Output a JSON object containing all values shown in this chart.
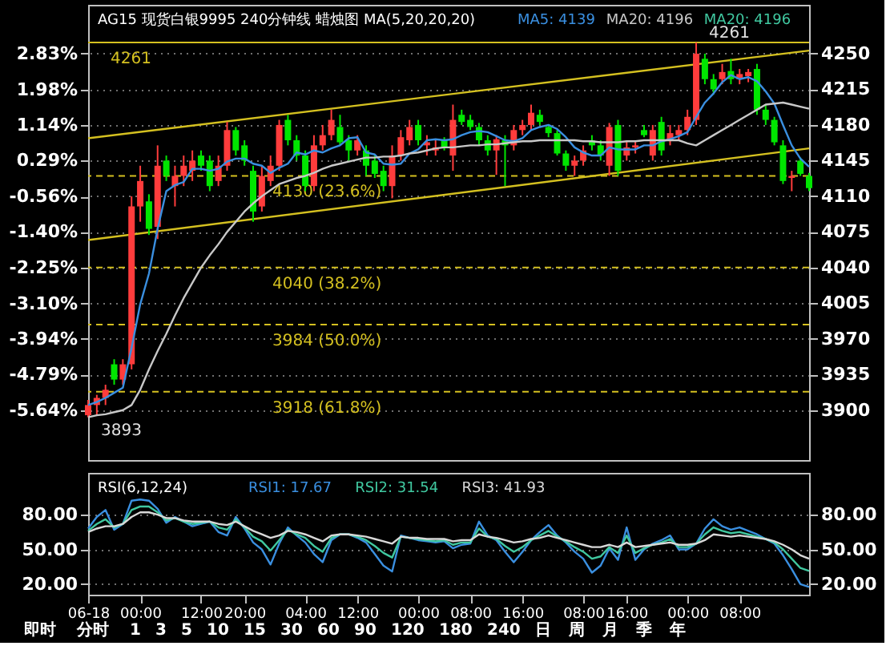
{
  "chart_data": [
    {
      "type": "candlestick",
      "title": "AG15 现货白银9995 240分钟线  蜡烛图 MA(5,20,20,20)",
      "ohlc": [
        [
          3895,
          3910,
          3893,
          3905
        ],
        [
          3905,
          3915,
          3895,
          3912
        ],
        [
          3912,
          3925,
          3905,
          3920
        ],
        [
          3945,
          3950,
          3925,
          3930
        ],
        [
          3930,
          3950,
          3925,
          3945
        ],
        [
          3945,
          4110,
          3940,
          4100
        ],
        [
          4100,
          4140,
          4085,
          4125
        ],
        [
          4105,
          4112,
          4072,
          4078
        ],
        [
          4080,
          4160,
          4068,
          4140
        ],
        [
          4145,
          4150,
          4125,
          4130
        ],
        [
          4120,
          4140,
          4100,
          4130
        ],
        [
          4130,
          4150,
          4120,
          4140
        ],
        [
          4135,
          4155,
          4125,
          4145
        ],
        [
          4150,
          4155,
          4135,
          4140
        ],
        [
          4145,
          4150,
          4115,
          4120
        ],
        [
          4125,
          4150,
          4120,
          4140
        ],
        [
          4140,
          4183,
          4135,
          4175
        ],
        [
          4175,
          4178,
          4150,
          4155
        ],
        [
          4160,
          4165,
          4140,
          4145
        ],
        [
          4135,
          4140,
          4085,
          4095
        ],
        [
          4100,
          4140,
          4095,
          4130
        ],
        [
          4125,
          4150,
          4120,
          4140
        ],
        [
          4140,
          4185,
          4135,
          4180
        ],
        [
          4185,
          4190,
          4160,
          4165
        ],
        [
          4165,
          4170,
          4145,
          4150
        ],
        [
          4150,
          4155,
          4115,
          4120
        ],
        [
          4120,
          4170,
          4115,
          4160
        ],
        [
          4160,
          4180,
          4155,
          4170
        ],
        [
          4170,
          4195,
          4165,
          4185
        ],
        [
          4178,
          4190,
          4160,
          4163
        ],
        [
          4165,
          4170,
          4145,
          4155
        ],
        [
          4155,
          4170,
          4150,
          4165
        ],
        [
          4155,
          4160,
          4130,
          4140
        ],
        [
          4145,
          4150,
          4128,
          4132
        ],
        [
          4135,
          4140,
          4115,
          4120
        ],
        [
          4120,
          4160,
          4108,
          4150
        ],
        [
          4150,
          4175,
          4145,
          4168
        ],
        [
          4165,
          4185,
          4160,
          4178
        ],
        [
          4180,
          4185,
          4160,
          4165
        ],
        [
          4160,
          4170,
          4150,
          4163
        ],
        [
          4155,
          4165,
          4150,
          4158
        ],
        [
          4165,
          4168,
          4155,
          4158
        ],
        [
          4150,
          4200,
          4135,
          4185
        ],
        [
          4190,
          4195,
          4180,
          4183
        ],
        [
          4185,
          4190,
          4175,
          4178
        ],
        [
          4178,
          4182,
          4160,
          4165
        ],
        [
          4165,
          4170,
          4150,
          4155
        ],
        [
          4155,
          4170,
          4131,
          4166
        ],
        [
          4165,
          4170,
          4120,
          4160
        ],
        [
          4160,
          4180,
          4155,
          4175
        ],
        [
          4175,
          4185,
          4170,
          4180
        ],
        [
          4180,
          4200,
          4175,
          4192
        ],
        [
          4190,
          4195,
          4180,
          4183
        ],
        [
          4178,
          4180,
          4168,
          4172
        ],
        [
          4172,
          4175,
          4150,
          4152
        ],
        [
          4152,
          4155,
          4135,
          4140
        ],
        [
          4140,
          4150,
          4130,
          4145
        ],
        [
          4145,
          4160,
          4140,
          4155
        ],
        [
          4165,
          4170,
          4155,
          4160
        ],
        [
          4160,
          4165,
          4145,
          4150
        ],
        [
          4140,
          4182,
          4130,
          4178
        ],
        [
          4180,
          4185,
          4130,
          4135
        ],
        [
          4150,
          4165,
          4145,
          4158
        ],
        [
          4158,
          4165,
          4152,
          4160
        ],
        [
          4175,
          4180,
          4168,
          4170
        ],
        [
          4150,
          4180,
          4145,
          4175
        ],
        [
          4183,
          4188,
          4150,
          4155
        ],
        [
          4165,
          4180,
          4160,
          4172
        ],
        [
          4170,
          4180,
          4165,
          4175
        ],
        [
          4175,
          4195,
          4170,
          4188
        ],
        [
          4185,
          4261,
          4180,
          4250
        ],
        [
          4245,
          4250,
          4220,
          4225
        ],
        [
          4225,
          4230,
          4210,
          4215
        ],
        [
          4225,
          4240,
          4220,
          4232
        ],
        [
          4233,
          4245,
          4220,
          4225
        ],
        [
          4225,
          4235,
          4220,
          4230
        ],
        [
          4228,
          4235,
          4222,
          4232
        ],
        [
          4235,
          4240,
          4190,
          4195
        ],
        [
          4195,
          4200,
          4180,
          4185
        ],
        [
          4185,
          4188,
          4160,
          4163
        ],
        [
          4160,
          4165,
          4122,
          4125
        ],
        [
          4128,
          4135,
          4115,
          4130
        ],
        [
          4145,
          4148,
          4130,
          4132
        ],
        [
          4130,
          4133,
          4115,
          4118
        ]
      ],
      "colors": [
        "#ff3c3c",
        "#ff3c3c",
        "#ff3c3c",
        "#00e600",
        "#ff3c3c",
        "#ff3c3c",
        "#ff3c3c",
        "#00e600",
        "#ff3c3c",
        "#00e600",
        "#ff3c3c",
        "#ff3c3c",
        "#ff3c3c",
        "#00e600",
        "#00e600",
        "#ff3c3c",
        "#ff3c3c",
        "#00e600",
        "#00e600",
        "#00e600",
        "#ff3c3c",
        "#ff3c3c",
        "#ff3c3c",
        "#00e600",
        "#00e600",
        "#00e600",
        "#ff3c3c",
        "#ff3c3c",
        "#ff3c3c",
        "#00e600",
        "#00e600",
        "#ff3c3c",
        "#00e600",
        "#00e600",
        "#00e600",
        "#ff3c3c",
        "#ff3c3c",
        "#ff3c3c",
        "#00e600",
        "#ff3c3c",
        "#ff3c3c",
        "#00e600",
        "#ff3c3c",
        "#00e600",
        "#00e600",
        "#00e600",
        "#00e600",
        "#ff3c3c",
        "#00e600",
        "#ff3c3c",
        "#ff3c3c",
        "#ff3c3c",
        "#00e600",
        "#00e600",
        "#00e600",
        "#00e600",
        "#ff3c3c",
        "#ff3c3c",
        "#00e600",
        "#00e600",
        "#ff3c3c",
        "#00e600",
        "#ff3c3c",
        "#ff3c3c",
        "#00e600",
        "#ff3c3c",
        "#00e600",
        "#ff3c3c",
        "#ff3c3c",
        "#ff3c3c",
        "#ff3c3c",
        "#00e600",
        "#00e600",
        "#ff3c3c",
        "#00e600",
        "#ff3c3c",
        "#ff3c3c",
        "#00e600",
        "#00e600",
        "#00e600",
        "#00e600",
        "#ff3c3c",
        "#00e600",
        "#00e600"
      ],
      "series": [
        {
          "type": "line",
          "color": "#d4c020",
          "values": [
            4167,
            null,
            null,
            null,
            null,
            null,
            null,
            null,
            null,
            null,
            null,
            null,
            null,
            null,
            null,
            null,
            null,
            null,
            null,
            null,
            null,
            null,
            null,
            null,
            null,
            null,
            null,
            null,
            null,
            null,
            null,
            null,
            null,
            null,
            null,
            null,
            null,
            null,
            null,
            null,
            null,
            null,
            null,
            null,
            null,
            null,
            null,
            null,
            null,
            null,
            null,
            null,
            null,
            null,
            null,
            null,
            null,
            null,
            null,
            null,
            null,
            null,
            null,
            null,
            null,
            null,
            null,
            null,
            null,
            null,
            null,
            null,
            null,
            null,
            null,
            null,
            null,
            null,
            null,
            null,
            null,
            null,
            null,
            4253
          ]
        },
        {
          "type": "line",
          "color": "#d4c020",
          "values": [
            4067,
            null,
            null,
            null,
            null,
            null,
            null,
            null,
            null,
            null,
            null,
            null,
            null,
            null,
            null,
            null,
            null,
            null,
            null,
            null,
            null,
            null,
            null,
            null,
            null,
            null,
            null,
            null,
            null,
            null,
            null,
            null,
            null,
            null,
            null,
            null,
            null,
            null,
            null,
            null,
            null,
            null,
            null,
            null,
            null,
            null,
            null,
            null,
            null,
            null,
            null,
            null,
            null,
            null,
            null,
            null,
            null,
            null,
            null,
            null,
            null,
            null,
            null,
            null,
            null,
            null,
            null,
            null,
            null,
            null,
            null,
            null,
            null,
            null,
            null,
            null,
            null,
            null,
            null,
            null,
            null,
            null,
            null,
            4157
          ]
        },
        {
          "type": "line",
          "name": "MA5: 4139",
          "color": "#3a8fe0",
          "values": [
            3905,
            3908,
            3912,
            3917,
            3922,
            3961,
            4004,
            4034,
            4078,
            4115,
            4121,
            4124,
            4137,
            4137,
            4135,
            4137,
            4144,
            4147,
            4147,
            4142,
            4140,
            4133,
            4138,
            4142,
            4153,
            4151,
            4155,
            4153,
            4157,
            4160,
            4167,
            4168,
            4153,
            4151,
            4142,
            4141,
            4142,
            4152,
            4156,
            4165,
            4166,
            4165,
            4166,
            4170,
            4173,
            4174,
            4173,
            4169,
            4165,
            4164,
            4167,
            4175,
            4178,
            4180,
            4176,
            4168,
            4158,
            4153,
            4150,
            4150,
            4158,
            4156,
            4156,
            4156,
            4160,
            4160,
            4164,
            4166,
            4169,
            4173,
            4188,
            4202,
            4211,
            4222,
            4229,
            4225,
            4227,
            4223,
            4213,
            4201,
            4180,
            4160,
            4147,
            4139
          ]
        },
        {
          "type": "line",
          "name": "MA20: 4196",
          "color": "#c8c8c8",
          "values": [
            3893,
            3895,
            3896,
            3898,
            3900,
            3905,
            3920,
            3940,
            3958,
            3975,
            3993,
            4010,
            4025,
            4040,
            4052,
            4063,
            4075,
            4085,
            4095,
            4103,
            4110,
            4116,
            4122,
            4125,
            4128,
            4130,
            4133,
            4137,
            4140,
            4142,
            4144,
            4146,
            4148,
            4148,
            4149,
            4149,
            4150,
            4152,
            4153,
            4155,
            4157,
            4158,
            4158,
            4159,
            4160,
            4160,
            4161,
            4161,
            4162,
            4163,
            4164,
            4164,
            4165,
            4165,
            4165,
            4165,
            4165,
            4164,
            4164,
            4163,
            4163,
            4163,
            4164,
            4164,
            4165,
            4165,
            4165,
            4165,
            4165,
            4162,
            4160,
            4165,
            4170,
            4175,
            4180,
            4185,
            4190,
            4195,
            4200,
            4201,
            4202,
            4200,
            4198,
            4196
          ]
        }
      ],
      "ylim": [
        3851,
        4298
      ],
      "yticks": [
        3900,
        3935,
        3970,
        4005,
        4040,
        4075,
        4110,
        4145,
        4180,
        4215,
        4250
      ],
      "y2lim": [
        -6.82,
        3.99
      ],
      "y2ticks": [
        {
          "value": -5.64,
          "label": "-5.64%"
        },
        {
          "value": -4.79,
          "label": "-4.79%"
        },
        {
          "value": -3.94,
          "label": "-3.94%"
        },
        {
          "value": -3.1,
          "label": "-3.10%"
        },
        {
          "value": -2.25,
          "label": "-2.25%"
        },
        {
          "value": -1.4,
          "label": "-1.40%"
        },
        {
          "value": -0.56,
          "label": "-0.56%"
        },
        {
          "value": 0.29,
          "label": "0.29%"
        },
        {
          "value": 1.14,
          "label": "1.14%"
        },
        {
          "value": 1.98,
          "label": "1.98%"
        },
        {
          "value": 2.83,
          "label": "2.83%"
        }
      ],
      "ref_lines": [
        {
          "axis": "y",
          "value": 4261,
          "label": "4261",
          "color": "#d4c020",
          "line_style": "solid"
        },
        {
          "axis": "y",
          "value": 4130,
          "label": "4130 (23.6%)",
          "color": "#d4c020",
          "line_style": "dashed"
        },
        {
          "axis": "y",
          "value": 4040,
          "label": "4040 (38.2%)",
          "color": "#d4c020",
          "line_style": "dashed"
        },
        {
          "axis": "y",
          "value": 3984,
          "label": "3984 (50.0%)",
          "color": "#d4c020",
          "line_style": "dashed"
        },
        {
          "axis": "y",
          "value": 3918,
          "label": "3918 (61.8%)",
          "color": "#d4c020",
          "line_style": "dashed"
        }
      ],
      "annotations": [
        "MA20: 4196",
        {
          "text": "4261",
          "y": 4261
        },
        {
          "text": "3893",
          "y": 3893
        }
      ],
      "grid": "y",
      "legend": "top",
      "tick_labels": "y"
    },
    {
      "type": "line",
      "title": "RSI(6,12,24)",
      "categories": [
        "06-18",
        null,
        null,
        null,
        null,
        null,
        "00:00",
        null,
        null,
        null,
        null,
        null,
        null,
        "12:00",
        null,
        null,
        null,
        null,
        "20:00",
        null,
        null,
        null,
        null,
        null,
        null,
        "04:00",
        null,
        null,
        null,
        null,
        null,
        "12:00",
        null,
        null,
        null,
        null,
        null,
        null,
        "00:00",
        null,
        null,
        null,
        null,
        null,
        "08:00",
        null,
        null,
        null,
        null,
        null,
        "16:00",
        null,
        null,
        null,
        null,
        null,
        null,
        "08:00",
        null,
        null,
        null,
        null,
        "16:00",
        null,
        null,
        null,
        null,
        null,
        null,
        "00:00",
        null,
        null,
        null,
        null,
        null,
        "08:00",
        null,
        null,
        null,
        null,
        null,
        null,
        null,
        null
      ],
      "series": [
        {
          "name": "RSI1: 17.67",
          "color": "#3a8fe0",
          "values": [
            68,
            78,
            84,
            67,
            72,
            92,
            93,
            92,
            85,
            73,
            78,
            74,
            70,
            72,
            74,
            65,
            62,
            78,
            68,
            56,
            50,
            37,
            55,
            69,
            62,
            56,
            46,
            39,
            58,
            63,
            63,
            60,
            56,
            46,
            36,
            31,
            62,
            60,
            58,
            57,
            56,
            57,
            51,
            54,
            55,
            74,
            62,
            58,
            48,
            39,
            48,
            58,
            65,
            71,
            62,
            56,
            48,
            42,
            30,
            36,
            51,
            41,
            69,
            41,
            50,
            55,
            58,
            62,
            50,
            50,
            55,
            68,
            76,
            70,
            67,
            69,
            66,
            63,
            59,
            55,
            45,
            33,
            20,
            17.67
          ]
        },
        {
          "name": "RSI2: 31.54",
          "color": "#40c8a0",
          "values": [
            66,
            72,
            76,
            69,
            72,
            84,
            87,
            87,
            82,
            75,
            77,
            74,
            72,
            73,
            74,
            69,
            67,
            76,
            69,
            61,
            57,
            49,
            58,
            67,
            63,
            60,
            53,
            48,
            60,
            63,
            63,
            61,
            58,
            53,
            47,
            43,
            61,
            60,
            59,
            58,
            57,
            58,
            54,
            56,
            56,
            68,
            61,
            59,
            53,
            48,
            52,
            58,
            62,
            66,
            61,
            57,
            52,
            48,
            42,
            44,
            52,
            47,
            62,
            47,
            51,
            54,
            56,
            59,
            52,
            52,
            55,
            63,
            69,
            66,
            64,
            65,
            63,
            61,
            59,
            56,
            50,
            42,
            34,
            31.54
          ]
        },
        {
          "name": "RSI3: 41.93",
          "color": "#d8d8d8",
          "values": [
            65,
            68,
            70,
            70,
            72,
            78,
            82,
            82,
            80,
            77,
            77,
            75,
            74,
            74,
            74,
            72,
            71,
            74,
            70,
            66,
            63,
            60,
            62,
            66,
            65,
            63,
            60,
            57,
            62,
            63,
            63,
            62,
            61,
            59,
            57,
            55,
            61,
            60,
            60,
            59,
            59,
            59,
            57,
            58,
            58,
            63,
            61,
            60,
            58,
            56,
            57,
            59,
            60,
            62,
            60,
            58,
            56,
            54,
            52,
            52,
            54,
            52,
            56,
            52,
            53,
            54,
            55,
            56,
            54,
            54,
            55,
            58,
            63,
            62,
            61,
            62,
            61,
            60,
            59,
            57,
            54,
            50,
            45,
            41.93
          ]
        }
      ],
      "ylim": [
        11,
        116
      ],
      "yticks": [
        {
          "value": 20,
          "label": "20.00"
        },
        {
          "value": 50,
          "label": "50.00"
        },
        {
          "value": 80,
          "label": "80.00"
        }
      ],
      "y2lim": [
        11,
        116
      ],
      "y2ticks": [
        {
          "value": 20,
          "label": "20.00"
        },
        {
          "value": 50,
          "label": "50.00"
        },
        {
          "value": 80,
          "label": "80.00"
        }
      ],
      "annotations": [
        "即时",
        "分时",
        "1",
        "3",
        "5",
        "10",
        "15",
        "30",
        "60",
        "90",
        "120",
        "180",
        "240",
        "日",
        "周",
        "月",
        "季",
        "年"
      ],
      "grid": "y",
      "legend": "top"
    }
  ]
}
